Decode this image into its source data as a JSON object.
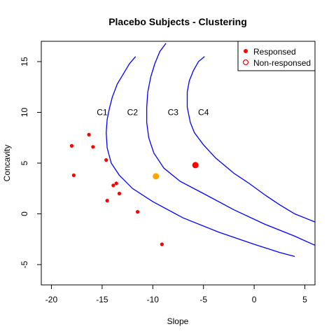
{
  "chart_data": {
    "type": "scatter",
    "title": "Placebo Subjects - Clustering",
    "xlabel": "Slope",
    "ylabel": "Concavity",
    "xlim": [
      -21,
      6
    ],
    "ylim": [
      -7,
      17
    ],
    "xticks": [
      -20,
      -15,
      -10,
      -5,
      0,
      5
    ],
    "yticks": [
      -5,
      0,
      5,
      10,
      15
    ],
    "grid": false,
    "legend": {
      "position": "top-right",
      "entries": [
        {
          "label": "Responsed",
          "marker": "filled",
          "color": "#ff0000"
        },
        {
          "label": "Non-responsed",
          "marker": "open",
          "color": "#ff0000"
        }
      ]
    },
    "series": [
      {
        "name": "Responsed",
        "color": "#ff0000",
        "points": [
          {
            "x": -18.0,
            "y": 6.7
          },
          {
            "x": -17.8,
            "y": 3.8
          },
          {
            "x": -16.3,
            "y": 7.8
          },
          {
            "x": -15.9,
            "y": 6.6
          },
          {
            "x": -14.6,
            "y": 5.3
          },
          {
            "x": -13.9,
            "y": 2.8
          },
          {
            "x": -13.6,
            "y": 3.0
          },
          {
            "x": -13.3,
            "y": 2.0
          },
          {
            "x": -14.5,
            "y": 1.3
          },
          {
            "x": -11.5,
            "y": 0.2
          },
          {
            "x": -9.1,
            "y": -3.0
          }
        ]
      }
    ],
    "highlight_points": [
      {
        "x": -9.7,
        "y": 3.7,
        "color": "#ffa500"
      },
      {
        "x": -5.8,
        "y": 4.8,
        "color": "#ff0000"
      }
    ],
    "boundaries": [
      {
        "label": "C1",
        "label_x": -15.0,
        "label_y": 10,
        "color": "#0000ff",
        "points": [
          [
            -11.7,
            15.5
          ],
          [
            -12.3,
            14.8
          ],
          [
            -12.9,
            13.8
          ],
          [
            -13.5,
            12.8
          ],
          [
            -14.0,
            11.5
          ],
          [
            -14.3,
            10.3
          ],
          [
            -14.5,
            9.3
          ],
          [
            -14.6,
            8.0
          ],
          [
            -14.5,
            6.5
          ],
          [
            -14.1,
            5.0
          ],
          [
            -13.3,
            3.8
          ],
          [
            -12.0,
            2.5
          ],
          [
            -10.0,
            1.2
          ],
          [
            -7.0,
            -0.4
          ],
          [
            -3.5,
            -1.8
          ],
          [
            0.0,
            -3.0
          ],
          [
            2.5,
            -3.8
          ],
          [
            4.0,
            -4.2
          ]
        ]
      },
      {
        "label": "C2",
        "label_x": -12.0,
        "label_y": 10,
        "color": "#0000ff",
        "points": [
          [
            -8.7,
            16.8
          ],
          [
            -9.3,
            16.0
          ],
          [
            -9.8,
            14.8
          ],
          [
            -10.2,
            13.5
          ],
          [
            -10.5,
            12.0
          ],
          [
            -10.6,
            10.5
          ],
          [
            -10.6,
            9.0
          ],
          [
            -10.4,
            7.5
          ],
          [
            -9.9,
            6.0
          ],
          [
            -8.9,
            4.5
          ],
          [
            -7.3,
            3.2
          ],
          [
            -5.0,
            2.0
          ],
          [
            -2.0,
            0.4
          ],
          [
            1.0,
            -1.0
          ],
          [
            4.0,
            -2.2
          ],
          [
            6.0,
            -3.1
          ]
        ]
      },
      {
        "label": "C3",
        "label_x": -8.0,
        "label_y": 10,
        "color": "#0000ff",
        "points": [
          [
            -4.9,
            15.5
          ],
          [
            -5.5,
            15.0
          ],
          [
            -6.0,
            14.1
          ],
          [
            -6.4,
            13.1
          ],
          [
            -6.6,
            12.0
          ],
          [
            -6.6,
            10.5
          ],
          [
            -6.3,
            9.0
          ],
          [
            -5.9,
            8.0
          ],
          [
            -5.0,
            6.8
          ],
          [
            -3.8,
            5.5
          ],
          [
            -2.0,
            4.0
          ],
          [
            -0.5,
            3.0
          ],
          [
            1.0,
            1.9
          ],
          [
            2.5,
            0.9
          ],
          [
            4.0,
            0.0
          ],
          [
            5.0,
            -0.4
          ],
          [
            6.0,
            -0.8
          ]
        ]
      }
    ],
    "region_labels": [
      {
        "label": "C4",
        "x": -5.0,
        "y": 10
      }
    ]
  }
}
